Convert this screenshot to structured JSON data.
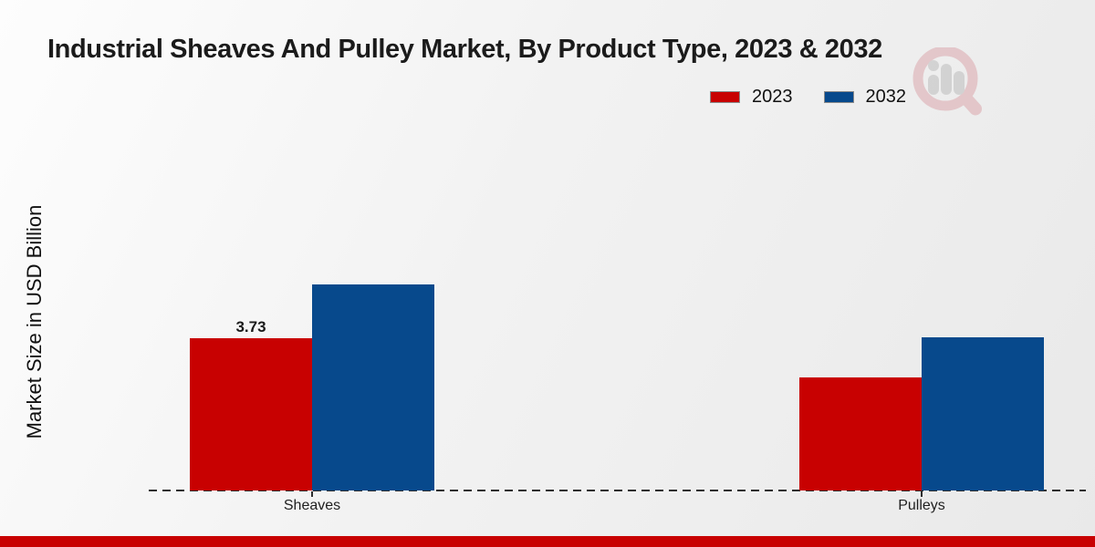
{
  "page": {
    "footer_bar_color": "#c80101"
  },
  "chart_data": {
    "type": "bar",
    "title": "Industrial Sheaves And Pulley Market, By Product Type, 2023 & 2032",
    "xlabel": "",
    "ylabel": "Market Size in USD Billion",
    "categories": [
      "Sheaves",
      "Pulleys"
    ],
    "series": [
      {
        "name": "2023",
        "color": "#c80101",
        "values": [
          3.73,
          2.77
        ],
        "data_labels": [
          "3.73",
          ""
        ]
      },
      {
        "name": "2032",
        "color": "#07498c",
        "values": [
          5.05,
          3.75
        ],
        "data_labels": [
          "",
          ""
        ]
      }
    ],
    "ylim": [
      0,
      5.6
    ],
    "grid": false,
    "legend_position": "top-right",
    "x_axis_line_style": "dashed",
    "y_axis_ticks_visible": false
  },
  "icons": {
    "watermark": "magnifier-bar-chart-logo",
    "watermark_ring_color": "#dba8ad",
    "watermark_bars_color": "#bdbdbd"
  }
}
